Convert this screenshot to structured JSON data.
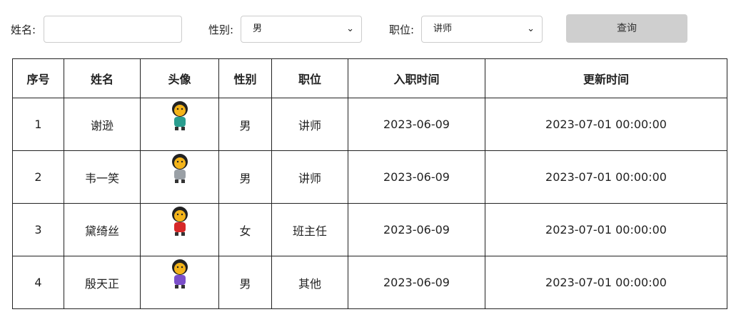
{
  "form": {
    "name_label": "姓名:",
    "name_value": "",
    "gender_label": "性别:",
    "gender_value": "男",
    "position_label": "职位:",
    "position_value": "讲师",
    "query_button": "查询"
  },
  "table": {
    "headers": [
      "序号",
      "姓名",
      "头像",
      "性别",
      "职位",
      "入职时间",
      "更新时间"
    ],
    "rows": [
      {
        "id": "1",
        "name": "谢逊",
        "gender": "男",
        "position": "讲师",
        "entry": "2023-06-09",
        "updated": "2023-07-01 00:00:00"
      },
      {
        "id": "2",
        "name": "韦一笑",
        "gender": "男",
        "position": "讲师",
        "entry": "2023-06-09",
        "updated": "2023-07-01 00:00:00"
      },
      {
        "id": "3",
        "name": "黛绮丝",
        "gender": "女",
        "position": "班主任",
        "entry": "2023-06-09",
        "updated": "2023-07-01 00:00:00"
      },
      {
        "id": "4",
        "name": "殷天正",
        "gender": "男",
        "position": "其他",
        "entry": "2023-06-09",
        "updated": "2023-07-01 00:00:00"
      }
    ]
  },
  "avatar_colors": [
    "#2a9d8f",
    "#9aa0a6",
    "#d62828",
    "#7b4fc9"
  ]
}
